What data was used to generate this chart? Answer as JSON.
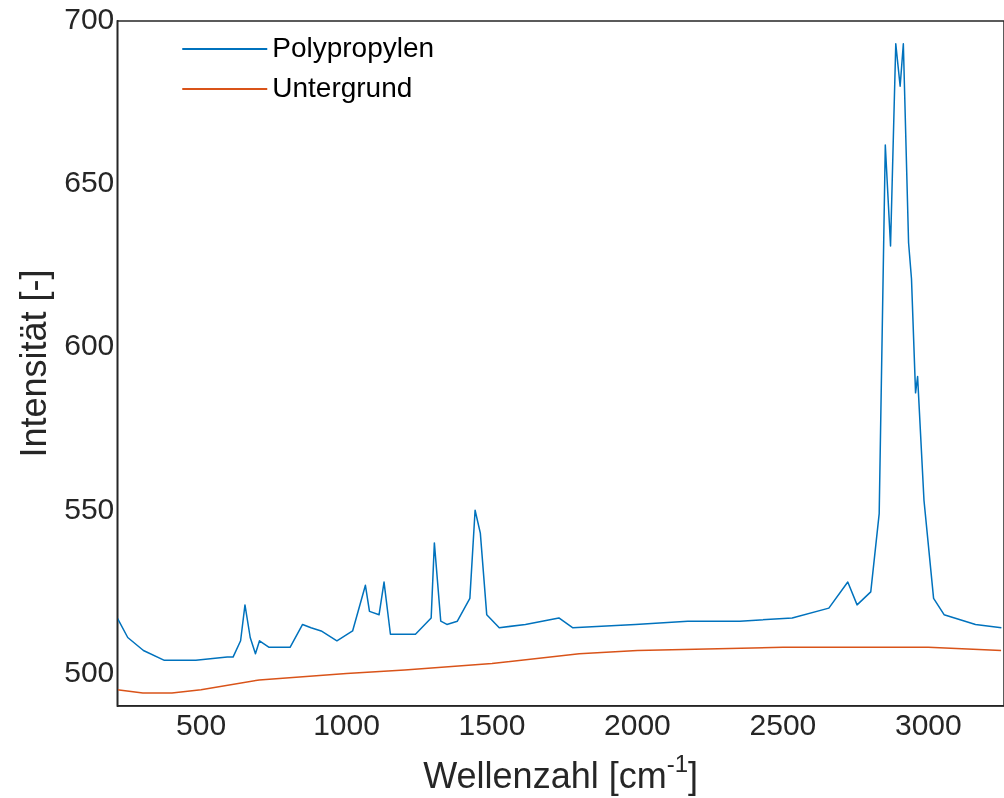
{
  "chart_data": {
    "type": "line",
    "xlabel": "Wellenzahl [cm$^{-1}$]",
    "ylabel": "Intensität [-]",
    "xlim": [
      212,
      3260
    ],
    "ylim": [
      490,
      700
    ],
    "xticks": [
      500,
      1000,
      1500,
      2000,
      2500,
      3000
    ],
    "yticks": [
      500,
      550,
      600,
      650,
      700
    ],
    "grid": false,
    "legend": "top left",
    "marker": "none",
    "line_style": "solid",
    "series": [
      {
        "name": "Polypropylen",
        "color": "#0072bd",
        "x": [
          212,
          248,
          302,
          374,
          482,
          590,
          610,
          636,
          651,
          669,
          687,
          701,
          734,
          806,
          849,
          878,
          913,
          967,
          1021,
          1065,
          1079,
          1112,
          1129,
          1151,
          1237,
          1291,
          1302,
          1324,
          1345,
          1381,
          1424,
          1442,
          1460,
          1482,
          1525,
          1615,
          1730,
          1777,
          1993,
          2173,
          2352,
          2532,
          2658,
          2723,
          2755,
          2802,
          2831,
          2852,
          2870,
          2888,
          2903,
          2914,
          2932,
          2942,
          2956,
          2963,
          2985,
          3018,
          3054,
          3162,
          3251
        ],
        "values": [
          517,
          511,
          507,
          504,
          504,
          505,
          505,
          510,
          521,
          511,
          506,
          510,
          508,
          508,
          515,
          514,
          513,
          510,
          513,
          527,
          519,
          518,
          528,
          512,
          512,
          517,
          540,
          516,
          515,
          516,
          523,
          550,
          543,
          518,
          514,
          515,
          517,
          514,
          515,
          516,
          516,
          517,
          520,
          528,
          521,
          525,
          549,
          662,
          631,
          693,
          680,
          693,
          632,
          621,
          586,
          591,
          553,
          523,
          518,
          515,
          514
        ]
      },
      {
        "name": "Untergrund",
        "color": "#d95319",
        "x": [
          212,
          300,
          400,
          500,
          700,
          1000,
          1200,
          1500,
          1800,
          2000,
          2500,
          3000,
          3250
        ],
        "values": [
          495,
          494,
          494,
          495,
          498,
          500,
          501,
          503,
          506,
          507,
          508,
          508,
          507
        ]
      }
    ]
  }
}
